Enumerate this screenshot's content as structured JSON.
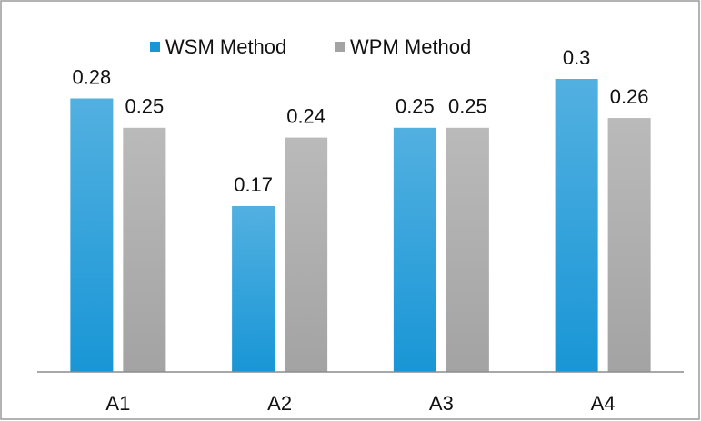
{
  "chart_data": {
    "type": "bar",
    "categories": [
      "A1",
      "A2",
      "A3",
      "A4"
    ],
    "series": [
      {
        "name": "WSM Method",
        "color": "#1996d6",
        "values": [
          0.28,
          0.17,
          0.25,
          0.3
        ]
      },
      {
        "name": "WPM Method",
        "color": "#a3a3a3",
        "values": [
          0.25,
          0.24,
          0.25,
          0.26
        ]
      }
    ],
    "legend": "top"
  }
}
